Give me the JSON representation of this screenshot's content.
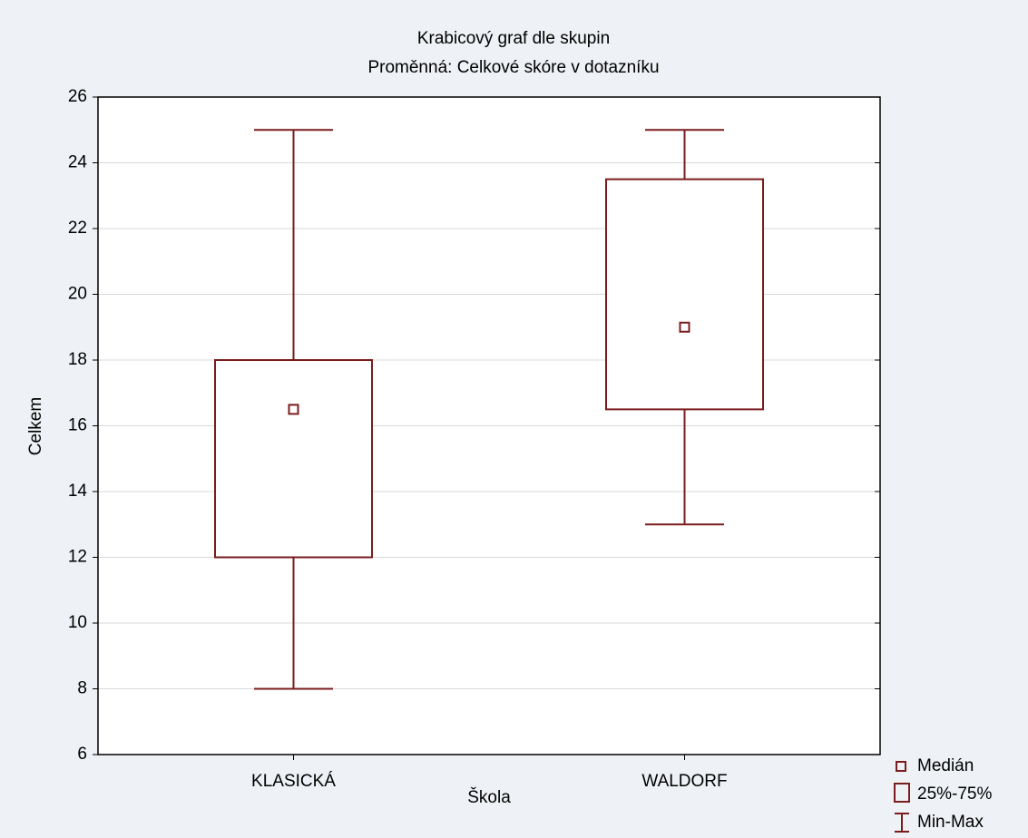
{
  "chart_data": {
    "type": "box",
    "title": "Krabicový graf dle skupin",
    "subtitle": "Proměnná: Celkové skóre v dotazníku",
    "x_label": "Škola",
    "y_label": "Celkem",
    "categories": [
      "KLASICKÁ",
      "WALDORF"
    ],
    "boxes": {
      "min": [
        8,
        13
      ],
      "q1": [
        12,
        16.5
      ],
      "median": [
        16.5,
        19
      ],
      "q3": [
        18,
        23.5
      ],
      "max": [
        25,
        25
      ]
    },
    "color": "#7b1c1c",
    "legend": [
      "Medián",
      "25%-75%",
      "Min-Max"
    ],
    "legend_position": "bottom-right",
    "ylim": [
      6,
      26
    ],
    "yticks": [
      6,
      8,
      10,
      12,
      14,
      16,
      18,
      20,
      22,
      24,
      26
    ],
    "grid": true
  }
}
